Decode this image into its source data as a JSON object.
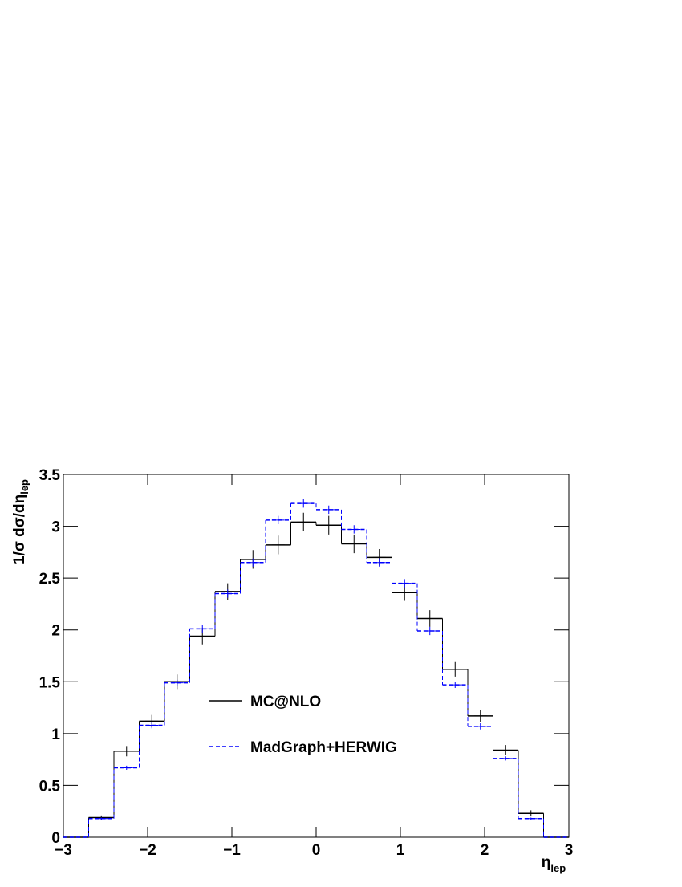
{
  "chart_data": {
    "type": "histogram",
    "xlabel": "η",
    "xlabel_sub": "lep",
    "ylabel": "1/σ dσ/dη",
    "ylabel_sub": "lep",
    "bins": [
      -3,
      -2.7,
      -2.4,
      -2.1,
      -1.8,
      -1.5,
      -1.2,
      -0.9,
      -0.6,
      -0.3,
      0,
      0.3,
      0.6,
      0.9,
      1.2,
      1.5,
      1.8,
      2.1,
      2.4,
      2.7,
      3
    ],
    "series": [
      {
        "name": "MC@NLO",
        "color": "#000000",
        "dash": false,
        "values": [
          0,
          0.19,
          0.83,
          1.12,
          1.5,
          1.94,
          2.37,
          2.68,
          2.82,
          3.04,
          3.01,
          2.83,
          2.7,
          2.36,
          2.11,
          1.62,
          1.17,
          0.84,
          0.23,
          0
        ],
        "errors": [
          0,
          0.02,
          0.05,
          0.06,
          0.07,
          0.08,
          0.08,
          0.09,
          0.09,
          0.09,
          0.09,
          0.09,
          0.08,
          0.08,
          0.08,
          0.07,
          0.06,
          0.05,
          0.03,
          0
        ]
      },
      {
        "name": "MadGraph+HERWIG",
        "color": "#0000ff",
        "dash": true,
        "values": [
          0,
          0.18,
          0.67,
          1.08,
          1.49,
          2.01,
          2.35,
          2.65,
          3.06,
          3.22,
          3.16,
          2.97,
          2.65,
          2.45,
          1.99,
          1.47,
          1.07,
          0.76,
          0.18,
          0
        ],
        "errors": [
          0,
          0.01,
          0.02,
          0.03,
          0.03,
          0.04,
          0.04,
          0.04,
          0.04,
          0.04,
          0.04,
          0.04,
          0.04,
          0.04,
          0.04,
          0.03,
          0.03,
          0.02,
          0.01,
          0
        ]
      }
    ],
    "xlim": [
      -3,
      3
    ],
    "ylim": [
      0,
      3.5
    ],
    "xticks": [
      {
        "value": -3,
        "label": "−3"
      },
      {
        "value": -2,
        "label": "−2"
      },
      {
        "value": -1,
        "label": "−1"
      },
      0,
      1,
      2,
      3
    ],
    "yticks": [
      0,
      0.5,
      1,
      1.5,
      2,
      2.5,
      3,
      3.5
    ]
  }
}
